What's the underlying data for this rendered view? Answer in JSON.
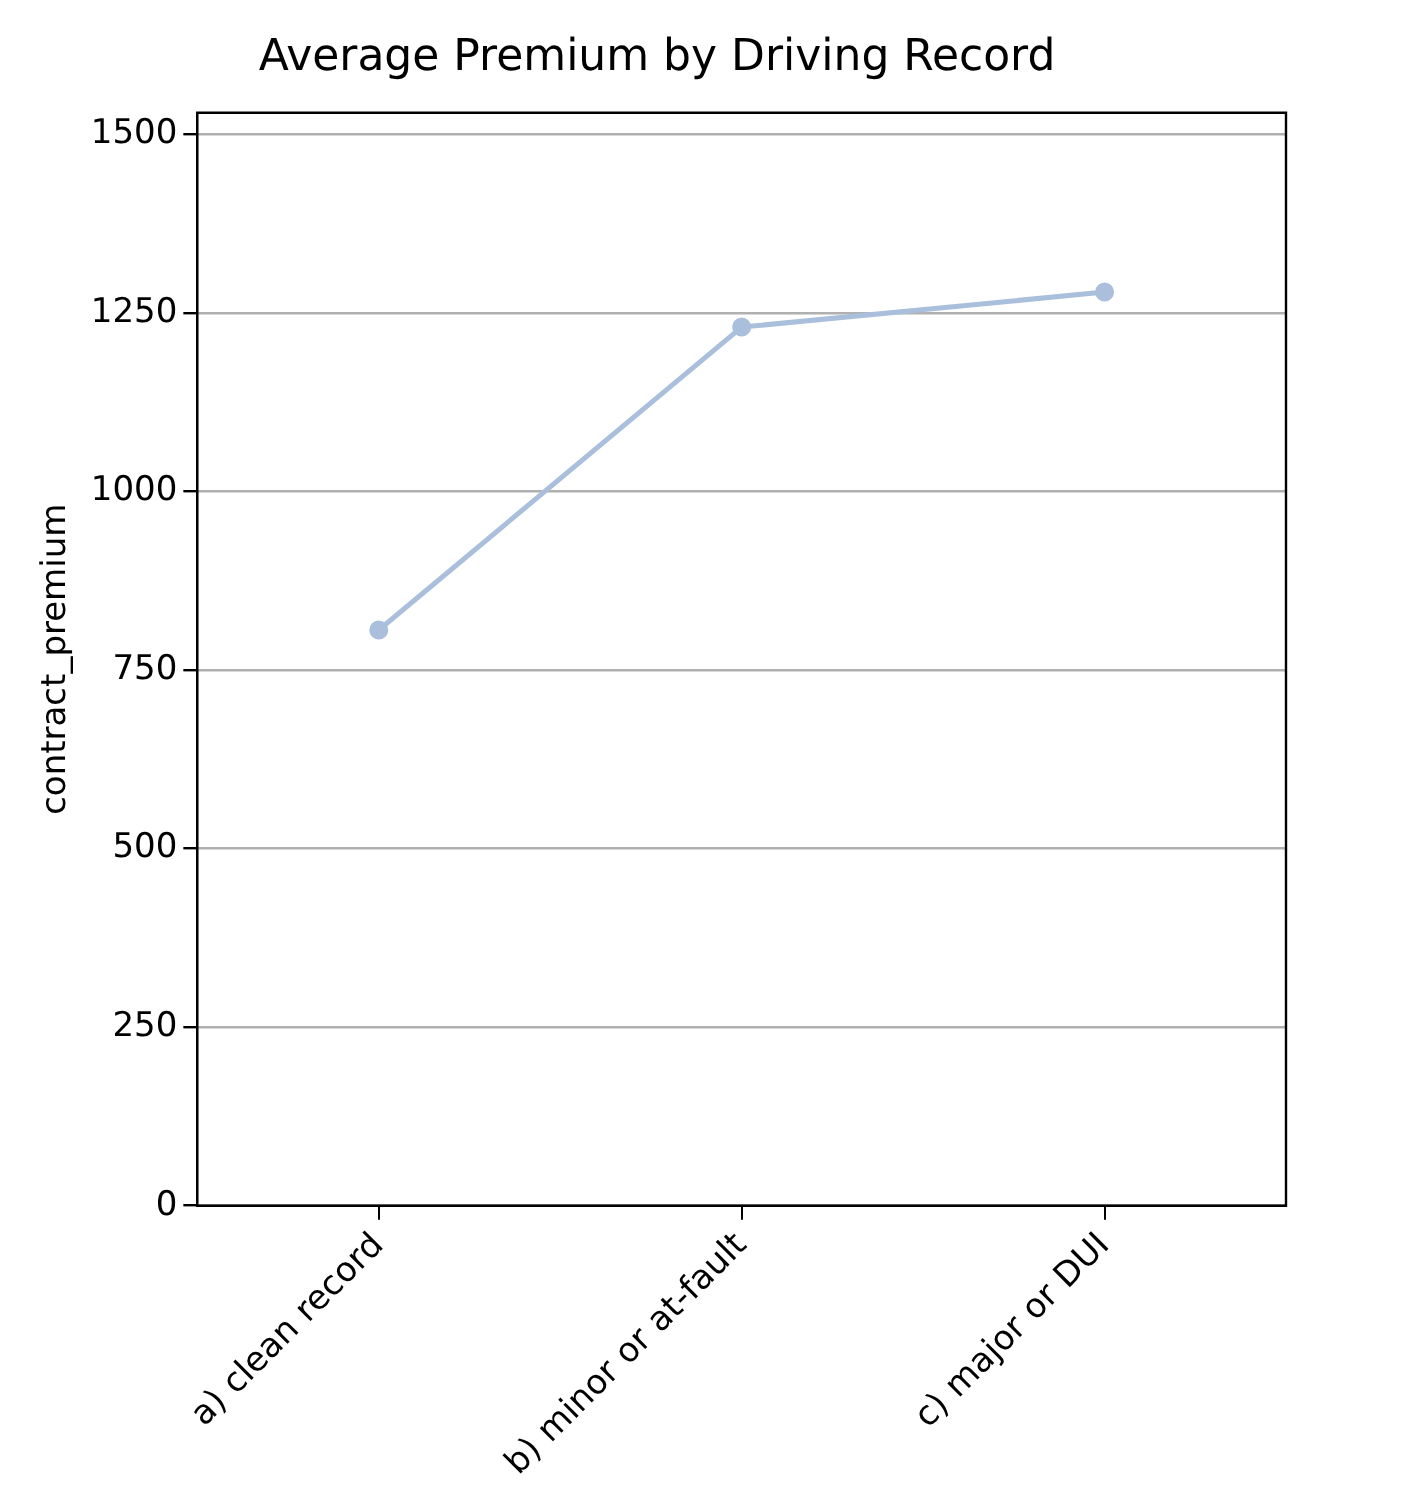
{
  "chart_data": {
    "type": "line",
    "title": "Average Premium by Driving Record",
    "ylabel": "contract_premium",
    "categories": [
      "a) clean record",
      "b) minor or at-fault",
      "c) major or DUI"
    ],
    "series": [
      {
        "color": "#aabfdb",
        "values": [
          806,
          1230,
          1279
        ]
      }
    ],
    "ylim": [
      0,
      1530
    ],
    "yticks": [
      0,
      250,
      500,
      750,
      1000,
      1250,
      1500
    ],
    "grid": "y",
    "legend": false,
    "marker": "circle",
    "line_style": "solid"
  }
}
